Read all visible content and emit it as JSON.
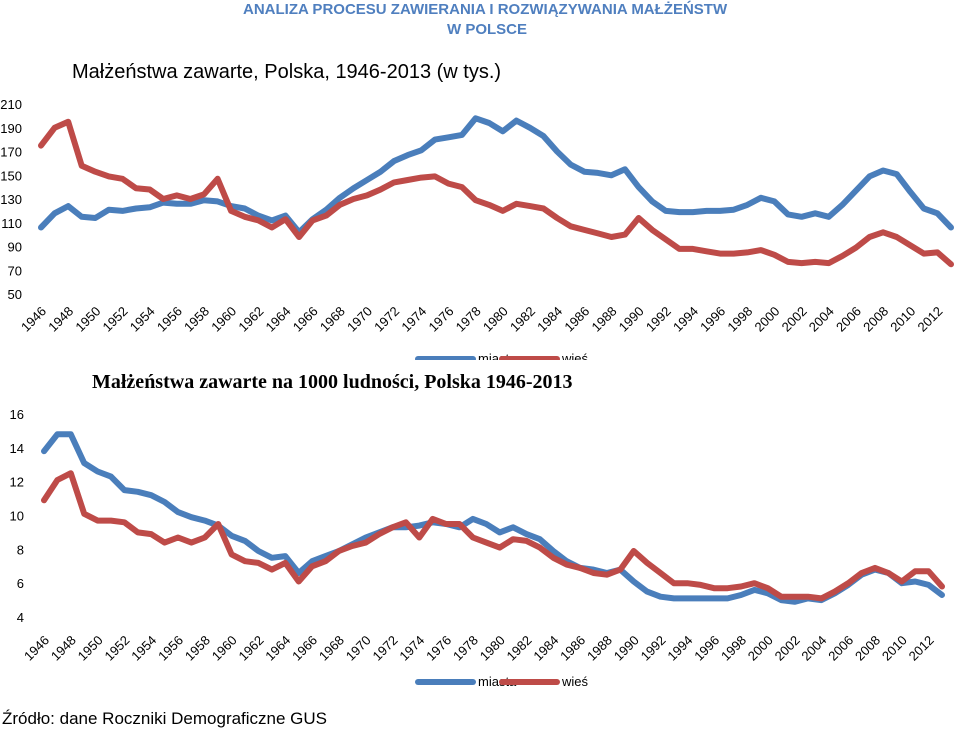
{
  "header": {
    "line1": "ANALIZA PROCESU  ZAWIERANIA I ROZWIĄZYWANIA MAŁŻEŃSTW",
    "line2": "W POLSCE"
  },
  "source": "Źródło: dane Roczniki Demograficzne GUS",
  "colors": {
    "miasta": "#4a7ebb",
    "wies": "#be4b48",
    "text": "#000000"
  },
  "chart_data": [
    {
      "type": "line",
      "title": "Małżeństwa zawarte, Polska, 1946-2013 (w tys.)",
      "x": [
        1946,
        1947,
        1948,
        1949,
        1950,
        1951,
        1952,
        1953,
        1954,
        1955,
        1956,
        1957,
        1958,
        1959,
        1960,
        1961,
        1962,
        1963,
        1964,
        1965,
        1966,
        1967,
        1968,
        1969,
        1970,
        1971,
        1972,
        1973,
        1974,
        1975,
        1976,
        1977,
        1978,
        1979,
        1980,
        1981,
        1982,
        1983,
        1984,
        1985,
        1986,
        1987,
        1988,
        1989,
        1990,
        1991,
        1992,
        1993,
        1994,
        1995,
        1996,
        1997,
        1998,
        1999,
        2000,
        2001,
        2002,
        2003,
        2004,
        2005,
        2006,
        2007,
        2008,
        2009,
        2010,
        2011,
        2012,
        2013
      ],
      "xticks": [
        "1946",
        "1948",
        "1950",
        "1952",
        "1954",
        "1956",
        "1958",
        "1960",
        "1962",
        "1964",
        "1966",
        "1968",
        "1970",
        "1972",
        "1974",
        "1976",
        "1978",
        "1980",
        "1982",
        "1984",
        "1986",
        "1988",
        "1990",
        "1992",
        "1994",
        "1996",
        "1998",
        "2000",
        "2002",
        "2004",
        "2006",
        "2008",
        "2010",
        "2012"
      ],
      "yticks": [
        50,
        70,
        90,
        110,
        130,
        150,
        170,
        190,
        210
      ],
      "ylim": [
        50,
        210
      ],
      "series": [
        {
          "name": "miasta",
          "values": [
            106,
            118,
            124,
            115,
            114,
            121,
            120,
            122,
            123,
            127,
            126,
            126,
            129,
            128,
            124,
            122,
            116,
            112,
            116,
            102,
            113,
            121,
            131,
            139,
            146,
            153,
            162,
            167,
            171,
            180,
            182,
            184,
            198,
            194,
            187,
            196,
            190,
            183,
            170,
            159,
            153,
            152,
            150,
            155,
            140,
            128,
            120,
            119,
            119,
            120,
            120,
            121,
            125,
            131,
            128,
            117,
            115,
            118,
            115,
            125,
            137,
            149,
            154,
            151,
            136,
            122,
            118,
            106
          ]
        },
        {
          "name": "wieś",
          "values": [
            175,
            190,
            195,
            158,
            153,
            149,
            147,
            139,
            138,
            130,
            133,
            130,
            134,
            147,
            120,
            115,
            112,
            106,
            113,
            98,
            112,
            116,
            125,
            130,
            133,
            138,
            144,
            146,
            148,
            149,
            143,
            140,
            129,
            125,
            120,
            126,
            124,
            122,
            114,
            107,
            104,
            101,
            98,
            100,
            114,
            104,
            96,
            88,
            88,
            86,
            84,
            84,
            85,
            87,
            83,
            77,
            76,
            77,
            76,
            82,
            89,
            98,
            102,
            98,
            91,
            84,
            85,
            75
          ]
        }
      ],
      "legend": [
        "miasta",
        "wieś"
      ]
    },
    {
      "type": "line",
      "title": "Małżeństwa zawarte na 1000 ludności, Polska 1946-2013",
      "x": [
        1946,
        1947,
        1948,
        1949,
        1950,
        1951,
        1952,
        1953,
        1954,
        1955,
        1956,
        1957,
        1958,
        1959,
        1960,
        1961,
        1962,
        1963,
        1964,
        1965,
        1966,
        1967,
        1968,
        1969,
        1970,
        1971,
        1972,
        1973,
        1974,
        1975,
        1976,
        1977,
        1978,
        1979,
        1980,
        1981,
        1982,
        1983,
        1984,
        1985,
        1986,
        1987,
        1988,
        1989,
        1990,
        1991,
        1992,
        1993,
        1994,
        1995,
        1996,
        1997,
        1998,
        1999,
        2000,
        2001,
        2002,
        2003,
        2004,
        2005,
        2006,
        2007,
        2008,
        2009,
        2010,
        2011,
        2012,
        2013
      ],
      "xticks": [
        "1946",
        "1948",
        "1950",
        "1952",
        "1954",
        "1956",
        "1958",
        "1960",
        "1962",
        "1964",
        "1966",
        "1968",
        "1970",
        "1972",
        "1974",
        "1976",
        "1978",
        "1980",
        "1982",
        "1984",
        "1986",
        "1988",
        "1990",
        "1992",
        "1994",
        "1996",
        "1998",
        "2000",
        "2002",
        "2004",
        "2006",
        "2008",
        "2010",
        "2012"
      ],
      "yticks": [
        4,
        6,
        8,
        10,
        12,
        14,
        16
      ],
      "ylim": [
        4,
        16
      ],
      "series": [
        {
          "name": "miasta",
          "values": [
            13.8,
            14.8,
            14.8,
            13.1,
            12.6,
            12.3,
            11.5,
            11.4,
            11.2,
            10.8,
            10.2,
            9.9,
            9.7,
            9.4,
            8.8,
            8.5,
            7.9,
            7.5,
            7.6,
            6.6,
            7.3,
            7.6,
            7.9,
            8.3,
            8.7,
            9.0,
            9.3,
            9.3,
            9.4,
            9.6,
            9.5,
            9.3,
            9.8,
            9.5,
            9.0,
            9.3,
            8.9,
            8.6,
            7.9,
            7.3,
            6.9,
            6.8,
            6.6,
            6.8,
            6.1,
            5.5,
            5.2,
            5.1,
            5.1,
            5.1,
            5.1,
            5.1,
            5.3,
            5.6,
            5.4,
            5.0,
            4.9,
            5.1,
            5.0,
            5.4,
            5.9,
            6.5,
            6.8,
            6.6,
            6.0,
            6.1,
            5.9,
            5.3
          ]
        },
        {
          "name": "wieś",
          "values": [
            10.9,
            12.1,
            12.5,
            10.1,
            9.7,
            9.7,
            9.6,
            9.0,
            8.9,
            8.4,
            8.7,
            8.4,
            8.7,
            9.5,
            7.7,
            7.3,
            7.2,
            6.8,
            7.2,
            6.1,
            7.0,
            7.3,
            7.9,
            8.2,
            8.4,
            8.9,
            9.3,
            9.6,
            8.7,
            9.8,
            9.5,
            9.5,
            8.7,
            8.4,
            8.1,
            8.6,
            8.5,
            8.1,
            7.5,
            7.1,
            6.9,
            6.6,
            6.5,
            6.8,
            7.9,
            7.2,
            6.6,
            6.0,
            6.0,
            5.9,
            5.7,
            5.7,
            5.8,
            6.0,
            5.7,
            5.2,
            5.2,
            5.2,
            5.1,
            5.5,
            6.0,
            6.6,
            6.9,
            6.6,
            6.1,
            6.7,
            6.7,
            5.8
          ]
        }
      ],
      "legend": [
        "miasta",
        "wieś"
      ]
    }
  ]
}
